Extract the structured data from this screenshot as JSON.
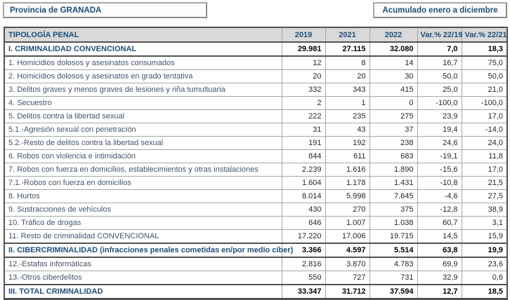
{
  "header": {
    "province_label": "Provincia de GRANADA",
    "period_label": "Acumulado enero a diciembre"
  },
  "table": {
    "columns": [
      "TIPOLOGÍA PENAL",
      "2019",
      "2021",
      "2022",
      "Var.% 22/19",
      "Var.% 22/21"
    ],
    "rows": [
      {
        "section": true,
        "cells": [
          "I. CRIMINALIDAD CONVENCIONAL",
          "29.981",
          "27.115",
          "32.080",
          "7,0",
          "18,3"
        ]
      },
      {
        "section": false,
        "cells": [
          "1. Homicidios dolosos y asesinatos consumados",
          "12",
          "8",
          "14",
          "16,7",
          "75,0"
        ]
      },
      {
        "section": false,
        "cells": [
          "2. Homicidios dolosos y asesinatos en grado tentativa",
          "20",
          "20",
          "30",
          "50,0",
          "50,0"
        ]
      },
      {
        "section": false,
        "cells": [
          "3. Delitos graves y menos graves de lesiones y riña tumultuaria",
          "332",
          "343",
          "415",
          "25,0",
          "21,0"
        ]
      },
      {
        "section": false,
        "cells": [
          "4. Secuestro",
          "2",
          "1",
          "0",
          "-100,0",
          "-100,0"
        ]
      },
      {
        "section": false,
        "cells": [
          "5. Delitos contra la libertad sexual",
          "222",
          "235",
          "275",
          "23,9",
          "17,0"
        ]
      },
      {
        "section": false,
        "cells": [
          "5.1.-Agresión sexual con penetración",
          "31",
          "43",
          "37",
          "19,4",
          "-14,0"
        ]
      },
      {
        "section": false,
        "cells": [
          "5.2.-Resto de delitos contra la libertad sexual",
          "191",
          "192",
          "238",
          "24,6",
          "24,0"
        ]
      },
      {
        "section": false,
        "cells": [
          "6. Robos con violencia e intimidación",
          "844",
          "611",
          "683",
          "-19,1",
          "11,8"
        ]
      },
      {
        "section": false,
        "cells": [
          "7. Robos con fuerza en domicilios, establecimientos y otras instalaciones",
          "2.239",
          "1.616",
          "1.890",
          "-15,6",
          "17,0"
        ]
      },
      {
        "section": false,
        "cells": [
          "7.1.-Robos con fuerza en domicilios",
          "1.604",
          "1.178",
          "1.431",
          "-10,8",
          "21,5"
        ]
      },
      {
        "section": false,
        "cells": [
          "8. Hurtos",
          "8.014",
          "5.998",
          "7.645",
          "-4,6",
          "27,5"
        ]
      },
      {
        "section": false,
        "cells": [
          "9. Sustracciones de vehículos",
          "430",
          "270",
          "375",
          "-12,8",
          "38,9"
        ]
      },
      {
        "section": false,
        "cells": [
          "10. Tráfico de drogas",
          "646",
          "1.007",
          "1.038",
          "60,7",
          "3,1"
        ]
      },
      {
        "section": false,
        "cells": [
          "11. Resto de criminalidad CONVENCIONAL",
          "17.220",
          "17.006",
          "19.715",
          "14,5",
          "15,9"
        ]
      },
      {
        "section": true,
        "cells": [
          "II. CIBERCRIMINALIDAD (infracciones penales cometidas en/por medio ciber)",
          "3.366",
          "4.597",
          "5.514",
          "63,8",
          "19,9"
        ]
      },
      {
        "section": false,
        "cells": [
          "12.-Estafas informáticas",
          "2.816",
          "3.870",
          "4.783",
          "69,9",
          "23,6"
        ]
      },
      {
        "section": false,
        "cells": [
          "13.-Otros ciberdelitos",
          "550",
          "727",
          "731",
          "32,9",
          "0,6"
        ]
      },
      {
        "section": true,
        "cells": [
          "III. TOTAL CRIMINALIDAD",
          "33.347",
          "31.712",
          "37.594",
          "12,7",
          "18,5"
        ]
      }
    ]
  },
  "colors": {
    "title_text": "#1f4e79",
    "row_label_text": "#44546a",
    "number_text": "#262626",
    "header_bg": "#d9d9d9",
    "grid_line": "#a6a6a6",
    "outer_border": "#525252"
  }
}
